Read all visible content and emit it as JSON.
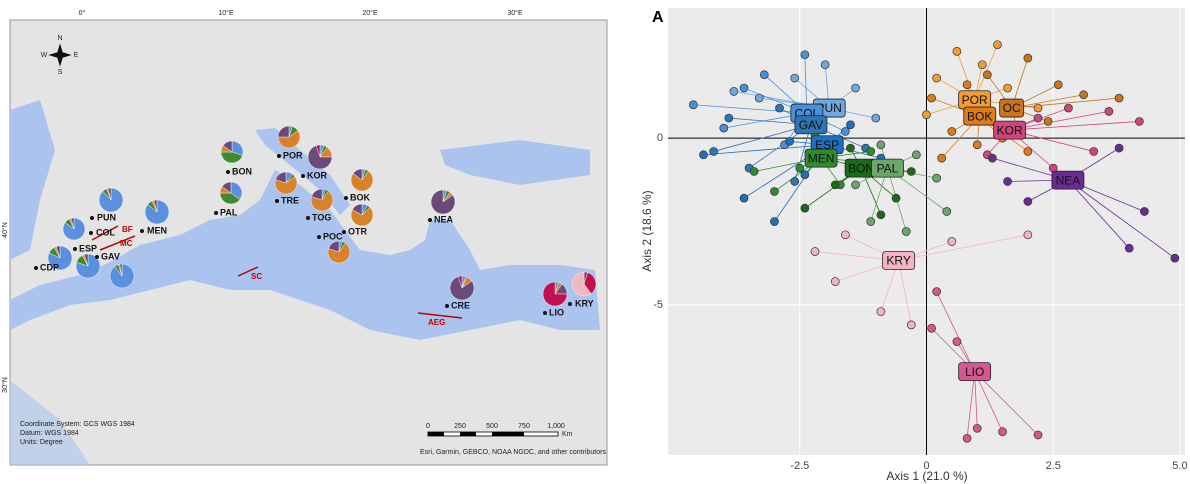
{
  "map": {
    "graticule": [
      "0°",
      "10°E",
      "20°E",
      "30°E",
      "40°N",
      "30°N"
    ],
    "compass": [
      "N",
      "E",
      "S",
      "W"
    ],
    "pie_colors": [
      "#5b8fe0",
      "#3f8a2f",
      "#d9822b",
      "#6b4a7a",
      "#c0104f",
      "#f2b8c0"
    ],
    "sites": [
      {
        "name": "PUN",
        "values": [
          88,
          6,
          2,
          4,
          0,
          0
        ]
      },
      {
        "name": "COL",
        "values": [
          85,
          8,
          3,
          4,
          0,
          0
        ]
      },
      {
        "name": "ESP",
        "values": [
          80,
          12,
          3,
          5,
          0,
          0
        ]
      },
      {
        "name": "GAV",
        "values": [
          90,
          5,
          2,
          3,
          0,
          0
        ]
      },
      {
        "name": "CDP",
        "values": [
          82,
          10,
          3,
          5,
          0,
          0
        ]
      },
      {
        "name": "MEN",
        "values": [
          86,
          7,
          3,
          4,
          0,
          0
        ]
      },
      {
        "name": "BON",
        "values": [
          30,
          45,
          10,
          15,
          0,
          0
        ]
      },
      {
        "name": "PAL",
        "values": [
          35,
          40,
          10,
          15,
          0,
          0
        ]
      },
      {
        "name": "POR",
        "values": [
          5,
          10,
          60,
          25,
          0,
          0
        ]
      },
      {
        "name": "KOR",
        "values": [
          5,
          5,
          15,
          70,
          5,
          0
        ]
      },
      {
        "name": "TRE",
        "values": [
          10,
          5,
          65,
          20,
          0,
          0
        ]
      },
      {
        "name": "TOG",
        "values": [
          5,
          5,
          70,
          20,
          0,
          0
        ]
      },
      {
        "name": "BOK",
        "values": [
          5,
          5,
          75,
          15,
          0,
          0
        ]
      },
      {
        "name": "OTR",
        "values": [
          8,
          5,
          70,
          17,
          0,
          0
        ]
      },
      {
        "name": "POC",
        "values": [
          5,
          5,
          70,
          20,
          0,
          0
        ]
      },
      {
        "name": "NEA",
        "values": [
          5,
          5,
          5,
          85,
          0,
          0
        ]
      },
      {
        "name": "CRE",
        "values": [
          5,
          2,
          8,
          80,
          5,
          0
        ]
      },
      {
        "name": "LIO",
        "values": [
          5,
          0,
          5,
          15,
          75,
          0
        ]
      },
      {
        "name": "KRY",
        "values": [
          0,
          0,
          0,
          5,
          35,
          60
        ]
      }
    ],
    "fronts": [
      "BF",
      "MC",
      "SC",
      "AEG"
    ],
    "info": [
      "Coordinate System: GCS WGS 1984",
      "Datum: WGS 1984",
      "Units: Degree"
    ],
    "scale_labels": [
      "0",
      "250",
      "500",
      "750",
      "1,000"
    ],
    "scale_unit": "Km",
    "attribution": "Esri, Garmin, GEBCO, NOAA NGDC, and other contributors"
  },
  "chart_data": {
    "type": "scatter",
    "panel_label": "A",
    "x_label": "Axis 1 (21.0 %)",
    "y_label": "Axis 2 (18.6 %)",
    "xlim": [
      -5.1,
      5.1
    ],
    "ylim": [
      -9.5,
      3.9
    ],
    "xticks": [
      -2.5,
      0,
      2.5,
      {
        "value": 5,
        "label": "5.0"
      }
    ],
    "yticks": [
      -5,
      0
    ],
    "grid": true,
    "zero_lines": true,
    "series": [
      {
        "name": "PUN",
        "color": "#6fa8dc",
        "centroid_x": -1.92,
        "centroid_y": 0.9,
        "x": [
          -3.3,
          -2.6,
          -2.0,
          -1.4,
          -1.0,
          -2.2,
          -3.8
        ],
        "values": [
          1.2,
          1.8,
          2.2,
          1.5,
          0.6,
          0.3,
          1.4
        ]
      },
      {
        "name": "COL",
        "color": "#4a90d9",
        "centroid_x": -2.36,
        "centroid_y": 0.75,
        "x": [
          -4.6,
          -4.0,
          -3.2,
          -2.8,
          -1.6,
          -3.6,
          -2.4
        ],
        "values": [
          1.0,
          0.3,
          1.9,
          -0.2,
          0.2,
          1.5,
          2.5
        ]
      },
      {
        "name": "GAV",
        "color": "#2e75b6",
        "centroid_x": -2.28,
        "centroid_y": 0.4,
        "x": [
          -4.2,
          -3.5,
          -2.9,
          -1.8,
          -1.2,
          -2.6,
          -3.9
        ],
        "values": [
          -0.4,
          -0.9,
          0.9,
          1.0,
          -0.3,
          -1.3,
          0.6
        ]
      },
      {
        "name": "ESP",
        "color": "#1f6fbf",
        "centroid_x": -1.96,
        "centroid_y": -0.2,
        "x": [
          -3.6,
          -3.0,
          -2.4,
          -1.5,
          -0.9,
          -2.7,
          -4.4
        ],
        "values": [
          -1.8,
          -2.5,
          -1.1,
          0.4,
          -0.6,
          -0.1,
          -0.5
        ]
      },
      {
        "name": "MEN",
        "color": "#2e8b2e",
        "centroid_x": -2.08,
        "centroid_y": -0.6,
        "x": [
          -3.0,
          -2.5,
          -1.7,
          -1.1,
          -2.2,
          -3.4,
          -0.6
        ],
        "values": [
          -1.6,
          -0.9,
          -1.4,
          -0.4,
          0.1,
          -1.0,
          -0.8
        ]
      },
      {
        "name": "BON",
        "color": "#1b6b1b",
        "centroid_x": -1.29,
        "centroid_y": -0.9,
        "x": [
          -2.4,
          -1.8,
          -0.9,
          -0.3,
          -1.5,
          -0.6,
          -2.0
        ],
        "values": [
          -2.1,
          -1.4,
          -2.3,
          -1.0,
          -0.3,
          -1.8,
          -0.6
        ]
      },
      {
        "name": "PAL",
        "color": "#6aa86a",
        "centroid_x": -0.77,
        "centroid_y": -0.9,
        "x": [
          -1.4,
          -0.4,
          0.2,
          -0.9,
          0.4,
          -0.2,
          -1.1
        ],
        "values": [
          -1.4,
          -2.8,
          -1.2,
          -0.2,
          -2.2,
          -0.5,
          -2.5
        ]
      },
      {
        "name": "POR",
        "color": "#f39c33",
        "centroid_x": 0.95,
        "centroid_y": 1.15,
        "x": [
          0.2,
          0.6,
          1.1,
          1.6,
          2.2,
          0.0,
          1.4
        ],
        "values": [
          1.8,
          2.6,
          2.2,
          1.5,
          0.9,
          0.7,
          2.8
        ]
      },
      {
        "name": "OC",
        "color": "#c9751a",
        "centroid_x": 1.68,
        "centroid_y": 0.9,
        "x": [
          1.2,
          2.0,
          2.6,
          3.1,
          3.8,
          2.4,
          1.8
        ],
        "values": [
          1.9,
          2.4,
          1.6,
          1.3,
          1.2,
          0.5,
          0.2
        ]
      },
      {
        "name": "BOK",
        "color": "#e07b1a",
        "centroid_x": 1.05,
        "centroid_y": 0.66,
        "x": [
          0.1,
          0.5,
          1.0,
          1.5,
          0.3,
          2.0,
          0.8
        ],
        "values": [
          1.2,
          0.2,
          -0.2,
          0.0,
          -0.6,
          -0.4,
          1.6
        ]
      },
      {
        "name": "KOR",
        "color": "#d0457a",
        "centroid_x": 1.64,
        "centroid_y": 0.24,
        "x": [
          2.2,
          2.8,
          3.3,
          4.2,
          1.2,
          2.5,
          3.6
        ],
        "values": [
          0.6,
          0.9,
          -0.4,
          0.5,
          -0.5,
          -0.9,
          0.8
        ]
      },
      {
        "name": "NEA",
        "color": "#6a2c91",
        "centroid_x": 2.79,
        "centroid_y": -1.26,
        "x": [
          1.3,
          2.0,
          3.8,
          4.3,
          4.9,
          4.0,
          1.6
        ],
        "values": [
          -0.6,
          -1.9,
          -0.3,
          -2.2,
          -3.6,
          -3.3,
          -1.3
        ]
      },
      {
        "name": "KRY",
        "color": "#f4b3c2",
        "centroid_x": -0.55,
        "centroid_y": -3.67,
        "x": [
          -2.2,
          -1.6,
          -0.9,
          0.5,
          -0.3,
          -1.8,
          2.0
        ],
        "values": [
          -3.4,
          -2.9,
          -5.2,
          -3.1,
          -5.6,
          -4.3,
          -2.9
        ]
      },
      {
        "name": "LIO",
        "color": "#d6578f",
        "centroid_x": 0.95,
        "centroid_y": -7.0,
        "x": [
          0.1,
          0.6,
          1.0,
          1.5,
          2.2,
          0.2,
          0.8
        ],
        "values": [
          -5.7,
          -6.1,
          -8.7,
          -8.8,
          -8.9,
          -4.6,
          -9.0
        ]
      }
    ]
  }
}
